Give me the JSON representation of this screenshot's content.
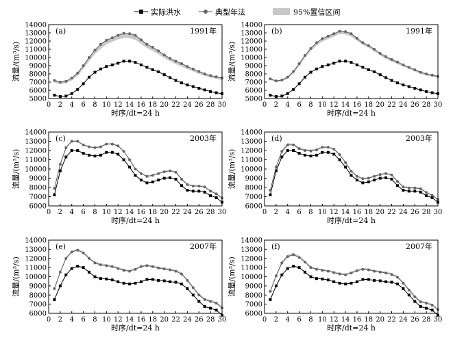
{
  "legend": {
    "actual": "实际洪水",
    "typical": "典型年法",
    "ci": "95%置信区间"
  },
  "colors": {
    "actual": "#000000",
    "typical": "#555555",
    "band": "#c8c8c8",
    "axis": "#000000"
  },
  "chart_data": [
    {
      "type": "line",
      "panel": "(a)",
      "year_label": "1991年",
      "xlabel": "时序/dt=24 h",
      "ylabel": "流量/(m³/s)",
      "xlim": [
        0,
        30
      ],
      "ylim": [
        5000,
        14000
      ],
      "xticks": [
        0,
        2,
        4,
        6,
        8,
        10,
        12,
        14,
        16,
        18,
        20,
        22,
        24,
        26,
        28,
        30
      ],
      "yticks": [
        5000,
        6000,
        7000,
        8000,
        9000,
        10000,
        11000,
        12000,
        13000,
        14000
      ],
      "x": [
        1,
        2,
        3,
        4,
        5,
        6,
        7,
        8,
        9,
        10,
        11,
        12,
        13,
        14,
        15,
        16,
        17,
        18,
        19,
        20,
        21,
        22,
        23,
        24,
        25,
        26,
        27,
        28,
        29,
        30
      ],
      "series": [
        {
          "name": "实际洪水",
          "values": [
            5400,
            5250,
            5300,
            5600,
            6100,
            6800,
            7600,
            8200,
            8600,
            8900,
            9100,
            9300,
            9550,
            9550,
            9400,
            9100,
            8800,
            8500,
            8250,
            7900,
            7550,
            7200,
            6900,
            6650,
            6450,
            6250,
            6050,
            5850,
            5700,
            5600
          ]
        },
        {
          "name": "典型年法",
          "values": [
            7200,
            7000,
            7100,
            7500,
            8100,
            9000,
            10000,
            10900,
            11600,
            12100,
            12400,
            12700,
            12950,
            12900,
            12700,
            12150,
            11600,
            11250,
            10800,
            10300,
            9900,
            9550,
            9250,
            8900,
            8600,
            8300,
            8000,
            7800,
            7650,
            7500
          ]
        }
      ],
      "ci": {
        "upper": [
          7300,
          7050,
          7150,
          7550,
          8150,
          9050,
          10050,
          10950,
          11650,
          12150,
          12450,
          12750,
          12950,
          12900,
          12700,
          12150,
          11600,
          11250,
          10800,
          10300,
          9900,
          9550,
          9250,
          8900,
          8600,
          8300,
          8000,
          7800,
          7650,
          7500
        ],
        "lower": [
          6950,
          6750,
          6850,
          7200,
          7750,
          8600,
          9550,
          10400,
          11050,
          11600,
          11900,
          12200,
          12400,
          12350,
          12150,
          11650,
          11150,
          10800,
          10400,
          9950,
          9550,
          9200,
          8900,
          8600,
          8300,
          8000,
          7750,
          7550,
          7400,
          7250
        ]
      }
    },
    {
      "type": "line",
      "panel": "(b)",
      "year_label": "1991年",
      "xlabel": "时序/dt=24 h",
      "ylabel": "流量/(m³/s)",
      "xlim": [
        0,
        30
      ],
      "ylim": [
        5000,
        14000
      ],
      "xticks": [
        0,
        2,
        4,
        6,
        8,
        10,
        12,
        14,
        16,
        18,
        20,
        22,
        24,
        26,
        28,
        30
      ],
      "yticks": [
        5000,
        6000,
        7000,
        8000,
        9000,
        10000,
        11000,
        12000,
        13000,
        14000
      ],
      "x": [
        1,
        2,
        3,
        4,
        5,
        6,
        7,
        8,
        9,
        10,
        11,
        12,
        13,
        14,
        15,
        16,
        17,
        18,
        19,
        20,
        21,
        22,
        23,
        24,
        25,
        26,
        27,
        28,
        29,
        30
      ],
      "series": [
        {
          "name": "实际洪水",
          "values": [
            5400,
            5250,
            5300,
            5600,
            6100,
            6800,
            7600,
            8200,
            8600,
            8900,
            9100,
            9300,
            9550,
            9550,
            9400,
            9100,
            8800,
            8500,
            8250,
            7900,
            7550,
            7200,
            6900,
            6650,
            6450,
            6250,
            6050,
            5850,
            5700,
            5600
          ]
        },
        {
          "name": "典型年法",
          "values": [
            7400,
            7150,
            7250,
            7600,
            8300,
            9250,
            10250,
            11100,
            11800,
            12300,
            12600,
            12900,
            13200,
            13150,
            12900,
            12350,
            11800,
            11450,
            11000,
            10500,
            10100,
            9750,
            9450,
            9100,
            8800,
            8500,
            8200,
            8000,
            7850,
            7700
          ]
        }
      ],
      "ci": {
        "upper": [
          7450,
          7200,
          7300,
          7650,
          8350,
          9300,
          10300,
          11150,
          11850,
          12350,
          12650,
          12950,
          13250,
          13200,
          12950,
          12400,
          11850,
          11500,
          11050,
          10550,
          10150,
          9800,
          9500,
          9150,
          8850,
          8550,
          8250,
          8050,
          7900,
          7750
        ],
        "lower": [
          7250,
          7000,
          7100,
          7400,
          8050,
          8950,
          9950,
          10800,
          11450,
          11950,
          12250,
          12550,
          12850,
          12800,
          12550,
          12050,
          11550,
          11200,
          10750,
          10250,
          9850,
          9500,
          9200,
          8900,
          8600,
          8300,
          8000,
          7800,
          7650,
          7500
        ]
      }
    },
    {
      "type": "line",
      "panel": "(c)",
      "year_label": "2003年",
      "xlabel": "时序/dt=24 h",
      "ylabel": "流量/(m³/s)",
      "xlim": [
        0,
        30
      ],
      "ylim": [
        6000,
        14000
      ],
      "xticks": [
        0,
        2,
        4,
        6,
        8,
        10,
        12,
        14,
        16,
        18,
        20,
        22,
        24,
        26,
        28,
        30
      ],
      "yticks": [
        6000,
        7000,
        8000,
        9000,
        10000,
        11000,
        12000,
        13000,
        14000
      ],
      "x": [
        1,
        2,
        3,
        4,
        5,
        6,
        7,
        8,
        9,
        10,
        11,
        12,
        13,
        14,
        15,
        16,
        17,
        18,
        19,
        20,
        21,
        22,
        23,
        24,
        25,
        26,
        27,
        28,
        29,
        30
      ],
      "series": [
        {
          "name": "实际洪水",
          "values": [
            7200,
            9800,
            11300,
            12000,
            12000,
            11700,
            11500,
            11400,
            11500,
            11800,
            11800,
            11600,
            11000,
            10200,
            9300,
            8800,
            8500,
            8600,
            8800,
            9000,
            9050,
            8900,
            8200,
            7700,
            7600,
            7600,
            7500,
            7100,
            6900,
            6400
          ]
        },
        {
          "name": "典型年法",
          "values": [
            7900,
            10500,
            12300,
            13000,
            13000,
            12600,
            12400,
            12300,
            12400,
            12700,
            12700,
            12500,
            11900,
            11000,
            10000,
            9500,
            9200,
            9300,
            9500,
            9700,
            9800,
            9650,
            8900,
            8300,
            8150,
            8150,
            8050,
            7600,
            7300,
            6850
          ]
        }
      ],
      "ci": {
        "upper": [
          7950,
          10550,
          12400,
          13100,
          13100,
          12700,
          12500,
          12400,
          12500,
          12800,
          12800,
          12600,
          12000,
          11100,
          10100,
          9600,
          9300,
          9400,
          9600,
          9800,
          9900,
          9750,
          9000,
          8400,
          8250,
          8250,
          8150,
          7700,
          7400,
          6950
        ]
      }
    },
    {
      "type": "line",
      "panel": "(d)",
      "year_label": "2003年",
      "xlabel": "时序/dt=24 h",
      "ylabel": "流量/(m³/s)",
      "xlim": [
        0,
        30
      ],
      "ylim": [
        6000,
        14000
      ],
      "xticks": [
        0,
        2,
        4,
        6,
        8,
        10,
        12,
        14,
        16,
        18,
        20,
        22,
        24,
        26,
        28,
        30
      ],
      "yticks": [
        6000,
        7000,
        8000,
        9000,
        10000,
        11000,
        12000,
        13000,
        14000
      ],
      "x": [
        1,
        2,
        3,
        4,
        5,
        6,
        7,
        8,
        9,
        10,
        11,
        12,
        13,
        14,
        15,
        16,
        17,
        18,
        19,
        20,
        21,
        22,
        23,
        24,
        25,
        26,
        27,
        28,
        29,
        30
      ],
      "series": [
        {
          "name": "实际洪水",
          "values": [
            7200,
            9800,
            11300,
            12000,
            12000,
            11700,
            11500,
            11400,
            11500,
            11800,
            11800,
            11600,
            11000,
            10200,
            9300,
            8800,
            8500,
            8600,
            8800,
            9000,
            9050,
            8900,
            8200,
            7700,
            7600,
            7600,
            7500,
            7100,
            6900,
            6400
          ]
        },
        {
          "name": "典型年法",
          "values": [
            7700,
            10200,
            11900,
            12600,
            12600,
            12200,
            12000,
            11950,
            12050,
            12350,
            12350,
            12150,
            11550,
            10700,
            9750,
            9200,
            8950,
            9000,
            9200,
            9400,
            9500,
            9350,
            8650,
            8050,
            7950,
            7950,
            7850,
            7450,
            7150,
            6700
          ]
        }
      ],
      "ci": {
        "upper": [
          7800,
          10350,
          12100,
          12800,
          12750,
          12350,
          12150,
          12100,
          12200,
          12450,
          12450,
          12250,
          11650,
          10800,
          9850,
          9300,
          9050,
          9100,
          9300,
          9500,
          9600,
          9450,
          8750,
          8150,
          8050,
          8050,
          7950,
          7550,
          7250,
          6800
        ]
      }
    },
    {
      "type": "line",
      "panel": "(e)",
      "year_label": "2007年",
      "xlabel": "时序/dt=24 h",
      "ylabel": "流量/(m³/s)",
      "xlim": [
        0,
        30
      ],
      "ylim": [
        6000,
        14000
      ],
      "xticks": [
        0,
        2,
        4,
        6,
        8,
        10,
        12,
        14,
        16,
        18,
        20,
        22,
        24,
        26,
        28,
        30
      ],
      "yticks": [
        6000,
        7000,
        8000,
        9000,
        10000,
        11000,
        12000,
        13000,
        14000
      ],
      "x": [
        1,
        2,
        3,
        4,
        5,
        6,
        7,
        8,
        9,
        10,
        11,
        12,
        13,
        14,
        15,
        16,
        17,
        18,
        19,
        20,
        21,
        22,
        23,
        24,
        25,
        26,
        27,
        28,
        29,
        30
      ],
      "series": [
        {
          "name": "实际洪水",
          "values": [
            7500,
            9000,
            10200,
            10900,
            11150,
            11000,
            10500,
            10000,
            9800,
            9750,
            9650,
            9450,
            9300,
            9200,
            9300,
            9450,
            9700,
            9700,
            9600,
            9550,
            9450,
            9400,
            9200,
            8700,
            8000,
            7300,
            6750,
            6550,
            6350,
            5800
          ]
        },
        {
          "name": "典型年法",
          "values": [
            8700,
            10500,
            12000,
            12700,
            12900,
            12600,
            12000,
            11500,
            11300,
            11200,
            11100,
            10900,
            10700,
            10600,
            10800,
            11100,
            11200,
            11100,
            10950,
            10850,
            10750,
            10600,
            10300,
            9600,
            8800,
            8000,
            7500,
            7300,
            7100,
            6600
          ]
        }
      ],
      "ci": {
        "upper": [
          8800,
          10600,
          12150,
          12850,
          13050,
          12750,
          12150,
          11650,
          11450,
          11350,
          11250,
          11050,
          10850,
          10750,
          10950,
          11250,
          11350,
          11250,
          11100,
          11000,
          10900,
          10750,
          10450,
          9750,
          8950,
          8150,
          7650,
          7450,
          7250,
          6700
        ]
      }
    },
    {
      "type": "line",
      "panel": "(f)",
      "year_label": "2007年",
      "xlabel": "时序/dt=24 h",
      "ylabel": "流量/(m³/s)",
      "xlim": [
        0,
        30
      ],
      "ylim": [
        6000,
        14000
      ],
      "xticks": [
        0,
        2,
        4,
        6,
        8,
        10,
        12,
        14,
        16,
        18,
        20,
        22,
        24,
        26,
        28,
        30
      ],
      "yticks": [
        6000,
        7000,
        8000,
        9000,
        10000,
        11000,
        12000,
        13000,
        14000
      ],
      "x": [
        1,
        2,
        3,
        4,
        5,
        6,
        7,
        8,
        9,
        10,
        11,
        12,
        13,
        14,
        15,
        16,
        17,
        18,
        19,
        20,
        21,
        22,
        23,
        24,
        25,
        26,
        27,
        28,
        29,
        30
      ],
      "series": [
        {
          "name": "实际洪水",
          "values": [
            7500,
            9000,
            10200,
            10900,
            11150,
            11000,
            10500,
            10000,
            9800,
            9750,
            9650,
            9450,
            9300,
            9200,
            9300,
            9450,
            9700,
            9700,
            9600,
            9550,
            9450,
            9400,
            9200,
            8700,
            8000,
            7300,
            6750,
            6550,
            6350,
            5800
          ]
        },
        {
          "name": "典型年法",
          "values": [
            8400,
            10100,
            11500,
            12200,
            12400,
            12100,
            11600,
            11000,
            10800,
            10700,
            10600,
            10450,
            10300,
            10200,
            10400,
            10650,
            10800,
            10750,
            10600,
            10500,
            10400,
            10250,
            9950,
            9300,
            8550,
            7800,
            7250,
            7100,
            6900,
            6400
          ]
        }
      ],
      "ci": {
        "upper": [
          8500,
          10250,
          11700,
          12400,
          12600,
          12300,
          11750,
          11150,
          10950,
          10850,
          10750,
          10600,
          10450,
          10350,
          10550,
          10800,
          10950,
          10900,
          10750,
          10650,
          10550,
          10400,
          10100,
          9450,
          8700,
          7950,
          7400,
          7250,
          7050,
          6500
        ]
      }
    }
  ]
}
